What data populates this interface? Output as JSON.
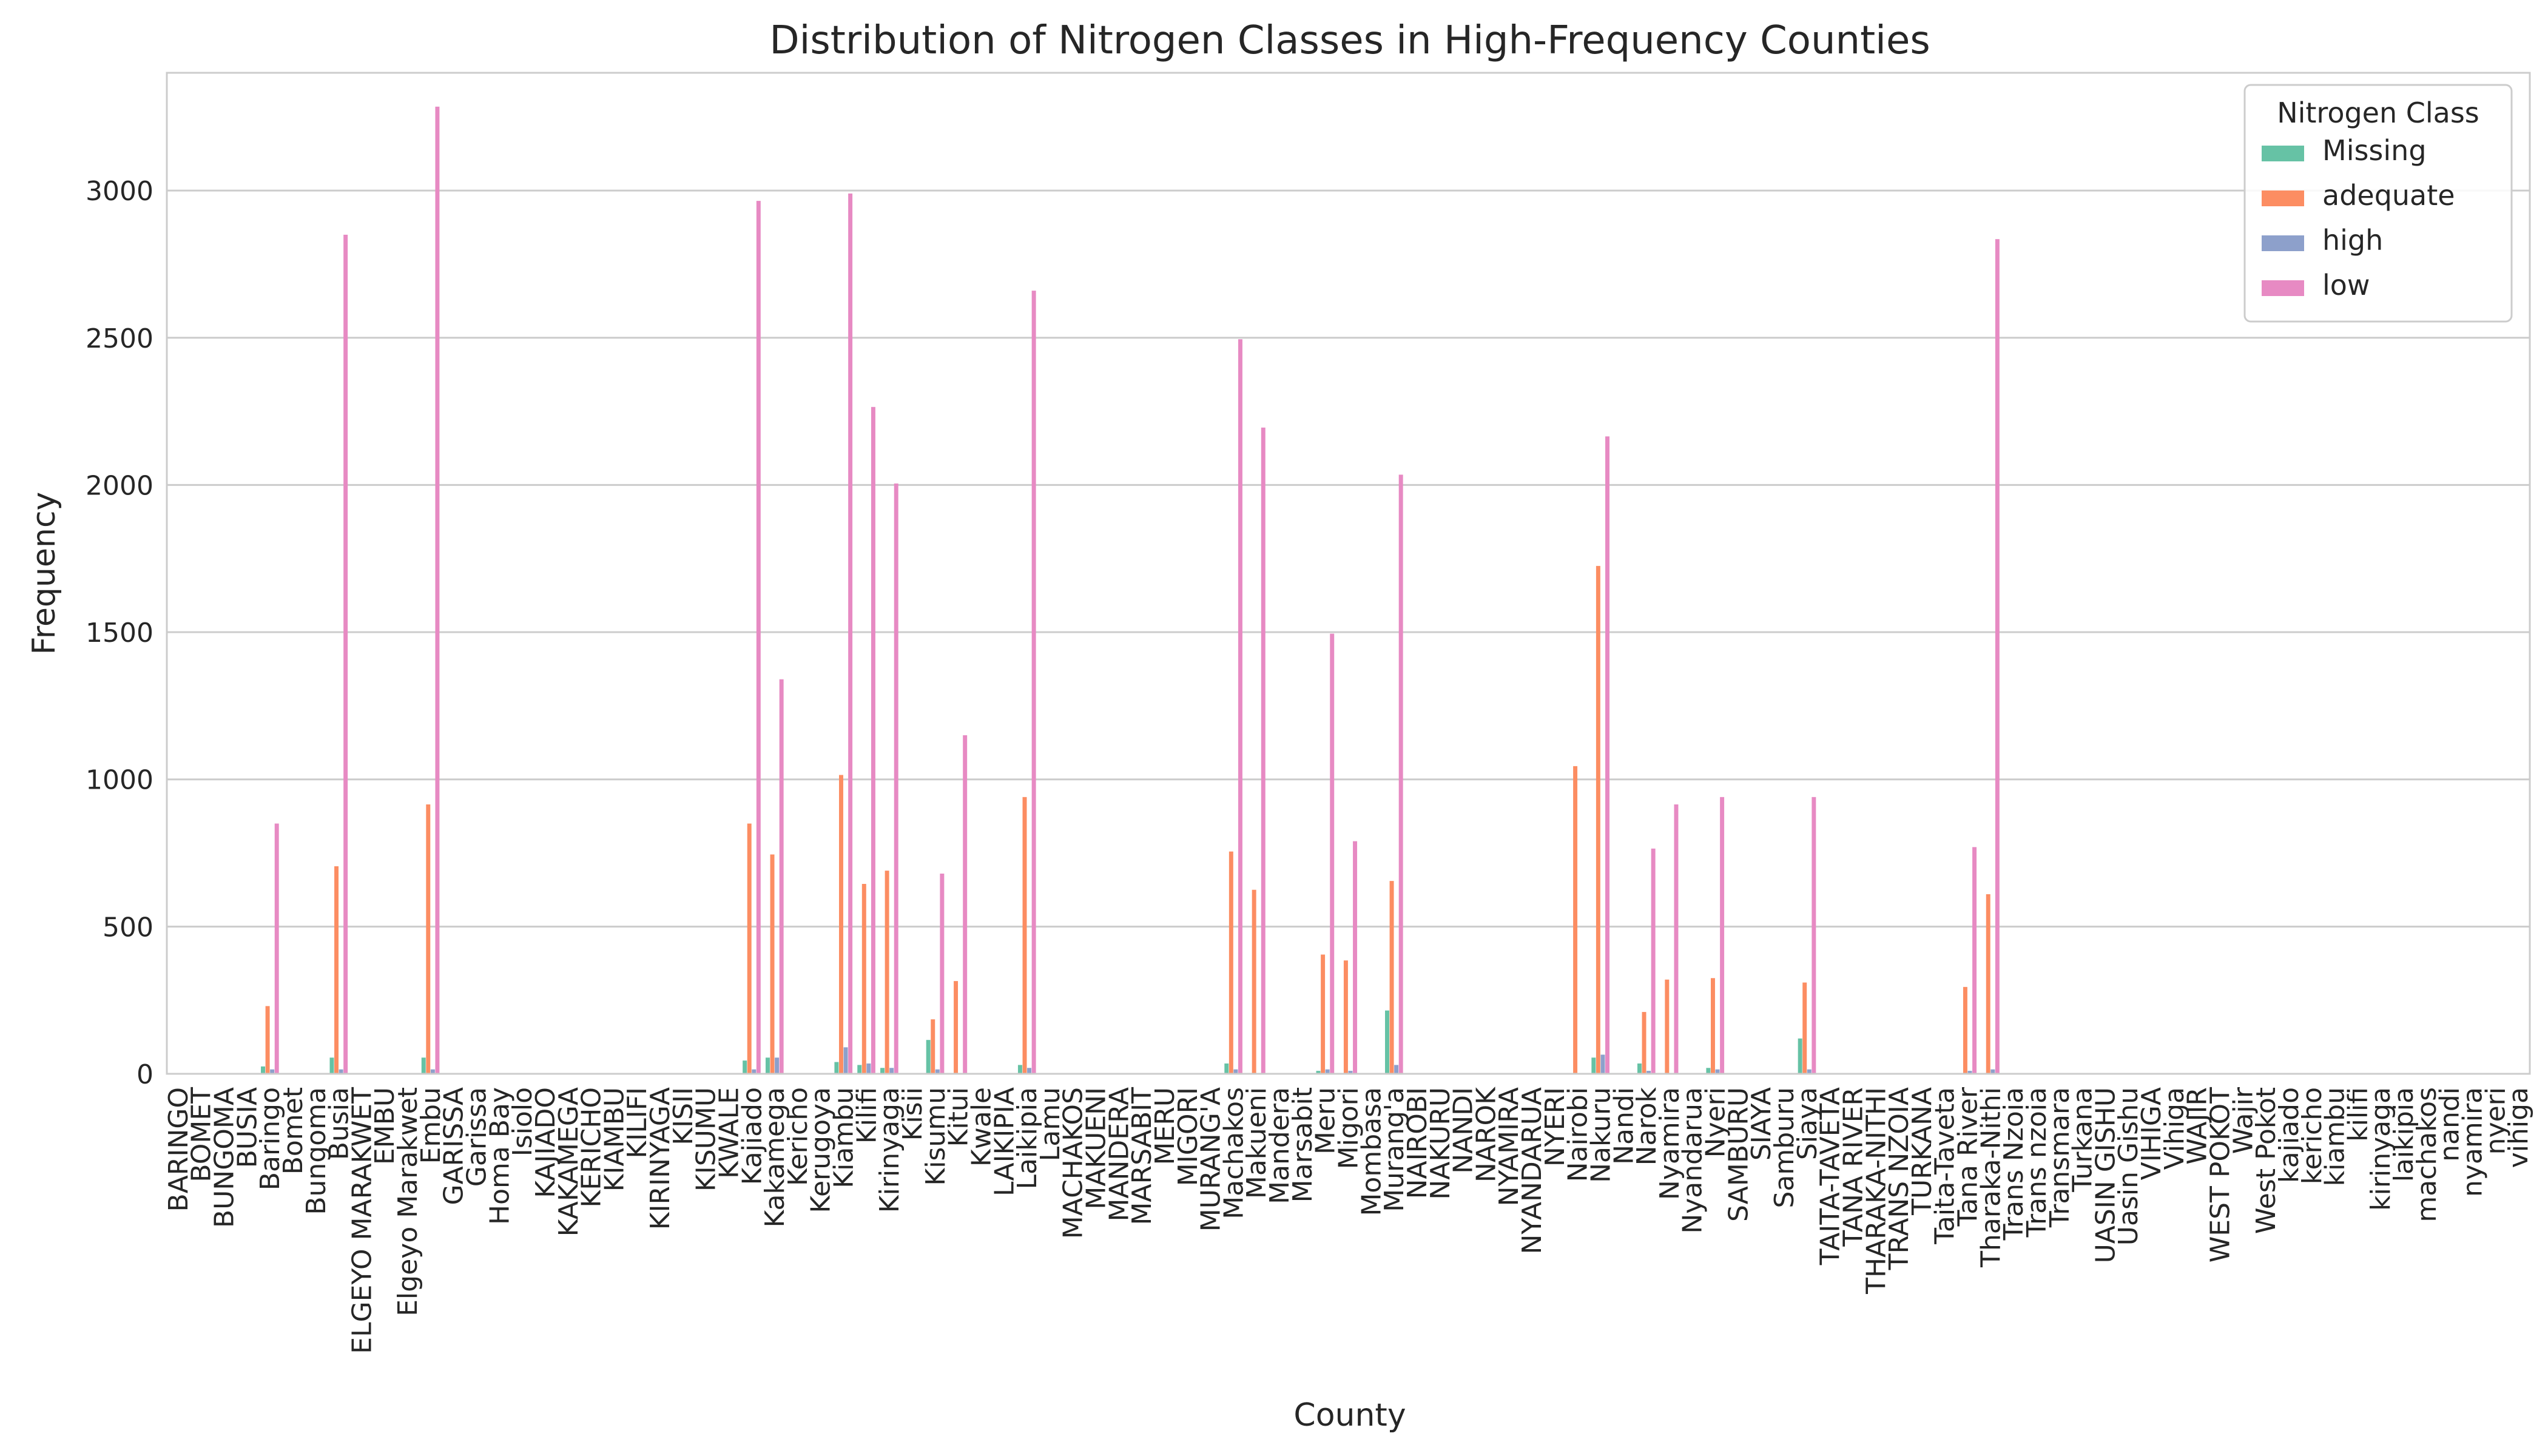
{
  "chart_data": {
    "type": "bar",
    "title": "Distribution of Nitrogen Classes in High-Frequency Counties",
    "xlabel": "County",
    "ylabel": "Frequency",
    "ylim": [
      0,
      3400
    ],
    "yticks": [
      0,
      500,
      1000,
      1500,
      2000,
      2500,
      3000
    ],
    "grid": "horizontal",
    "legend_placement": "top-right",
    "legend_title": "Nitrogen Class",
    "categories": [
      "BARINGO",
      "BOMET",
      "BUNGOMA",
      "BUSIA",
      "Baringo",
      "Bomet",
      "Bungoma",
      "Busia",
      "ELGEYO MARAKWET",
      "EMBU",
      "Elgeyo Marakwet",
      "Embu",
      "GARISSA",
      "Garissa",
      "Homa Bay",
      "Isiolo",
      "KAJIADO",
      "KAKAMEGA",
      "KERICHO",
      "KIAMBU",
      "KILIFI",
      "KIRINYAGA",
      "KISII",
      "KISUMU",
      "KWALE",
      "Kajiado",
      "Kakamega",
      "Kericho",
      "Kerugoya",
      "Kiambu",
      "Kilifi",
      "Kirinyaga",
      "Kisii",
      "Kisumu",
      "Kitui",
      "Kwale",
      "LAIKIPIA",
      "Laikipia",
      "Lamu",
      "MACHAKOS",
      "MAKUENI",
      "MANDERA",
      "MARSABIT",
      "MERU",
      "MIGORI",
      "MURANG'A",
      "Machakos",
      "Makueni",
      "Mandera",
      "Marsabit",
      "Meru",
      "Migori",
      "Mombasa",
      "Murang'a",
      "NAIROBI",
      "NAKURU",
      "NANDI",
      "NAROK",
      "NYAMIRA",
      "NYANDARUA",
      "NYERI",
      "Nairobi",
      "Nakuru",
      "Nandi",
      "Narok",
      "Nyamira",
      "Nyandarua",
      "Nyeri",
      "SAMBURU",
      "SIAYA",
      "Samburu",
      "Siaya",
      "TAITA-TAVETA",
      "TANA RIVER",
      "THARAKA-NITHI",
      "TRANS NZOIA",
      "TURKANA",
      "Taita-Taveta",
      "Tana River",
      "Tharaka-Nithi",
      "Trans Nzoia",
      "Trans nzoia",
      "Transmara",
      "Turkana",
      "UASIN GISHU",
      "Uasin Gishu",
      "VIHIGA",
      "Vihiga",
      "WAJIR",
      "WEST POKOT",
      "Wajir",
      "West Pokot",
      "kajiado",
      "kericho",
      "kiambu",
      "kilifi",
      "kirinyaga",
      "laikipia",
      "machakos",
      "nandi",
      "nyamira",
      "nyeri",
      "vihiga"
    ],
    "series": [
      {
        "name": "Missing",
        "color": "#66c2a5",
        "values": [
          0,
          0,
          0,
          0,
          25,
          0,
          0,
          55,
          0,
          0,
          0,
          55,
          0,
          0,
          0,
          0,
          0,
          0,
          0,
          0,
          0,
          0,
          0,
          0,
          0,
          45,
          55,
          0,
          0,
          40,
          30,
          20,
          0,
          115,
          0,
          0,
          0,
          30,
          0,
          0,
          0,
          0,
          0,
          0,
          0,
          0,
          35,
          0,
          0,
          0,
          10,
          0,
          0,
          215,
          0,
          0,
          0,
          0,
          0,
          0,
          0,
          0,
          55,
          0,
          35,
          0,
          0,
          20,
          0,
          0,
          0,
          120,
          0,
          0,
          0,
          0,
          0,
          0,
          0,
          0,
          0,
          0,
          0,
          0,
          0,
          0,
          0,
          0,
          0,
          0,
          0,
          0,
          0,
          0,
          0,
          0,
          0,
          0,
          0,
          0,
          0,
          0,
          0
        ]
      },
      {
        "name": "adequate",
        "color": "#fc8d62",
        "values": [
          0,
          0,
          0,
          0,
          230,
          0,
          0,
          705,
          0,
          0,
          0,
          915,
          0,
          0,
          0,
          0,
          0,
          0,
          0,
          0,
          0,
          0,
          0,
          0,
          0,
          850,
          745,
          0,
          0,
          1015,
          645,
          690,
          0,
          185,
          315,
          0,
          0,
          940,
          0,
          0,
          0,
          0,
          0,
          0,
          0,
          0,
          755,
          625,
          0,
          0,
          405,
          385,
          0,
          655,
          0,
          0,
          0,
          0,
          0,
          0,
          0,
          1045,
          1725,
          0,
          210,
          320,
          0,
          325,
          0,
          0,
          0,
          310,
          0,
          0,
          0,
          0,
          0,
          0,
          295,
          610,
          0,
          0,
          0,
          0,
          0,
          0,
          0,
          0,
          0,
          0,
          0,
          0,
          0,
          0,
          0,
          0,
          0,
          0,
          0,
          0,
          0,
          0,
          0
        ]
      },
      {
        "name": "high",
        "color": "#8da0cb",
        "values": [
          0,
          0,
          0,
          0,
          15,
          0,
          0,
          15,
          0,
          0,
          0,
          15,
          0,
          0,
          0,
          0,
          0,
          0,
          0,
          0,
          0,
          0,
          0,
          0,
          0,
          15,
          55,
          0,
          0,
          90,
          35,
          20,
          0,
          15,
          0,
          0,
          0,
          20,
          0,
          0,
          0,
          0,
          0,
          0,
          0,
          0,
          15,
          0,
          0,
          0,
          15,
          10,
          0,
          30,
          0,
          0,
          0,
          0,
          0,
          0,
          0,
          0,
          65,
          0,
          10,
          0,
          0,
          15,
          0,
          0,
          0,
          15,
          0,
          0,
          0,
          0,
          0,
          0,
          10,
          15,
          0,
          0,
          0,
          0,
          0,
          0,
          0,
          0,
          0,
          0,
          0,
          0,
          0,
          0,
          0,
          0,
          0,
          0,
          0,
          0,
          0,
          0,
          0
        ]
      },
      {
        "name": "low",
        "color": "#e78ac3",
        "values": [
          0,
          0,
          0,
          0,
          850,
          0,
          0,
          2850,
          0,
          0,
          0,
          3285,
          0,
          0,
          0,
          0,
          0,
          0,
          0,
          0,
          0,
          0,
          0,
          0,
          0,
          2965,
          1340,
          0,
          0,
          2990,
          2265,
          2005,
          0,
          680,
          1150,
          0,
          0,
          2660,
          0,
          0,
          0,
          0,
          0,
          0,
          0,
          0,
          2495,
          2195,
          0,
          0,
          1495,
          790,
          0,
          2035,
          0,
          0,
          0,
          0,
          0,
          0,
          0,
          0,
          2165,
          0,
          765,
          915,
          0,
          940,
          0,
          0,
          0,
          940,
          0,
          0,
          0,
          0,
          0,
          0,
          770,
          2835,
          0,
          0,
          0,
          0,
          0,
          0,
          0,
          0,
          0,
          0,
          0,
          0,
          0,
          0,
          0,
          0,
          0,
          0,
          0,
          0,
          0,
          0,
          0
        ]
      }
    ]
  }
}
